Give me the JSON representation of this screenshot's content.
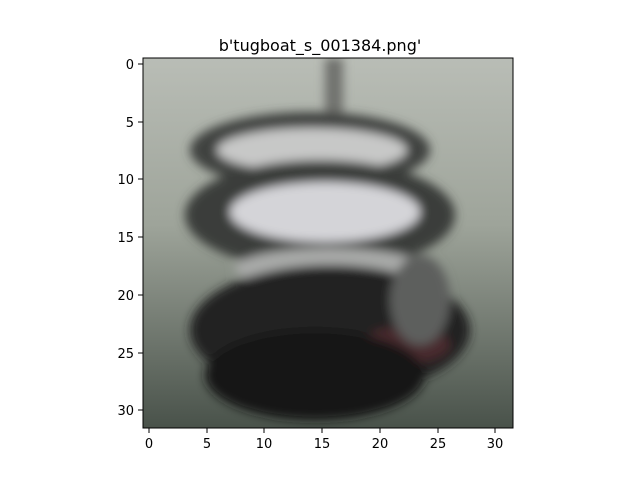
{
  "title": "b'tugboat_s_001384.png'",
  "image": {
    "description": "Blurry low-resolution image of a tugboat (grey-white cabin, dark hull) on grey-green water"
  },
  "axes": {
    "x_ticks": [
      "0",
      "5",
      "10",
      "15",
      "20",
      "25",
      "30"
    ],
    "y_ticks": [
      "0",
      "5",
      "10",
      "15",
      "20",
      "25",
      "30"
    ]
  }
}
